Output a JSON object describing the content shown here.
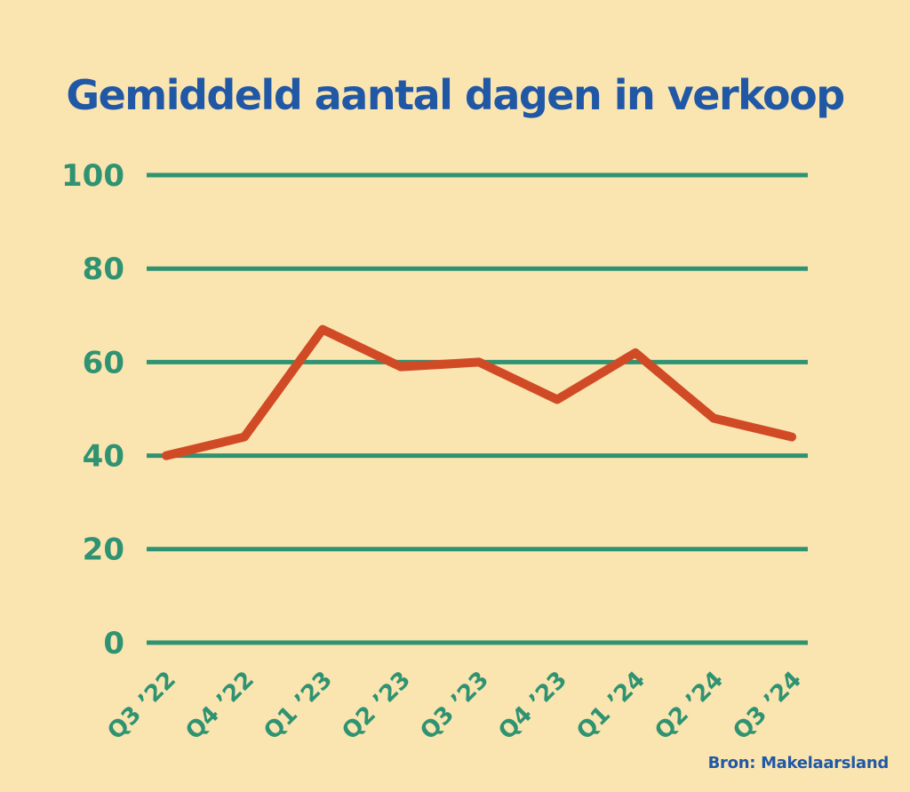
{
  "title": "Gemiddeld aantal dagen in verkoop",
  "source": "Bron: Makelaarsland",
  "colors": {
    "background": "#FAE5B0",
    "title_blue": "#2158A6",
    "axis_green": "#2F9372",
    "line_red": "#D14A26"
  },
  "chart_data": {
    "type": "line",
    "title": "Gemiddeld aantal dagen in verkoop",
    "categories": [
      "Q3 ’22",
      "Q4 ’22",
      "Q1 ’23",
      "Q2 ’23",
      "Q3 ’23",
      "Q4 ’23",
      "Q1 ’24",
      "Q2 ’24",
      "Q3 ’24"
    ],
    "values": [
      40,
      44,
      67,
      59,
      60,
      52,
      62,
      48,
      44
    ],
    "yticks": [
      0,
      20,
      40,
      60,
      80,
      100
    ],
    "ylim": [
      0,
      100
    ],
    "xlabel": "",
    "ylabel": "",
    "grid": "horizontal-only",
    "legend_position": "none",
    "series_color": "#D14A26",
    "annotation": "Bron: Makelaarsland"
  }
}
